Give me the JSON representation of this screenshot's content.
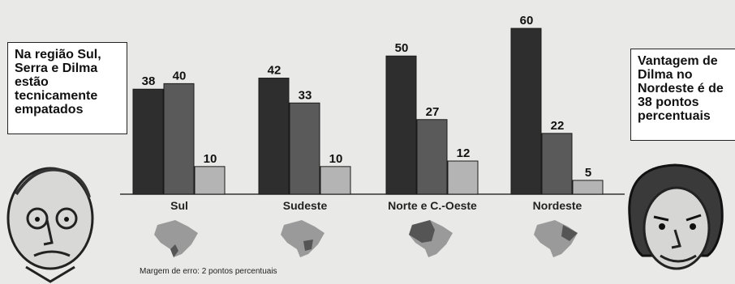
{
  "note_left": "Na região Sul, Serra e Dilma estão tecnicamente empatados",
  "note_right": "Vantagem de Dilma no Nordeste é de 38 pontos percentuais",
  "footnote": "Margem de erro: 2 pontos percentuais",
  "colors": {
    "series1": "#2e2e2e",
    "series2": "#5a5a5a",
    "series3": "#b4b4b4",
    "map": "#9a9a9a"
  },
  "chart_data": {
    "type": "bar",
    "categories": [
      "Sul",
      "Sudeste",
      "Norte e C.-Oeste",
      "Nordeste"
    ],
    "series": [
      {
        "values": [
          38,
          42,
          50,
          60
        ]
      },
      {
        "values": [
          40,
          33,
          27,
          22
        ]
      },
      {
        "values": [
          10,
          10,
          12,
          5
        ]
      }
    ],
    "ylim": [
      0,
      65
    ]
  }
}
